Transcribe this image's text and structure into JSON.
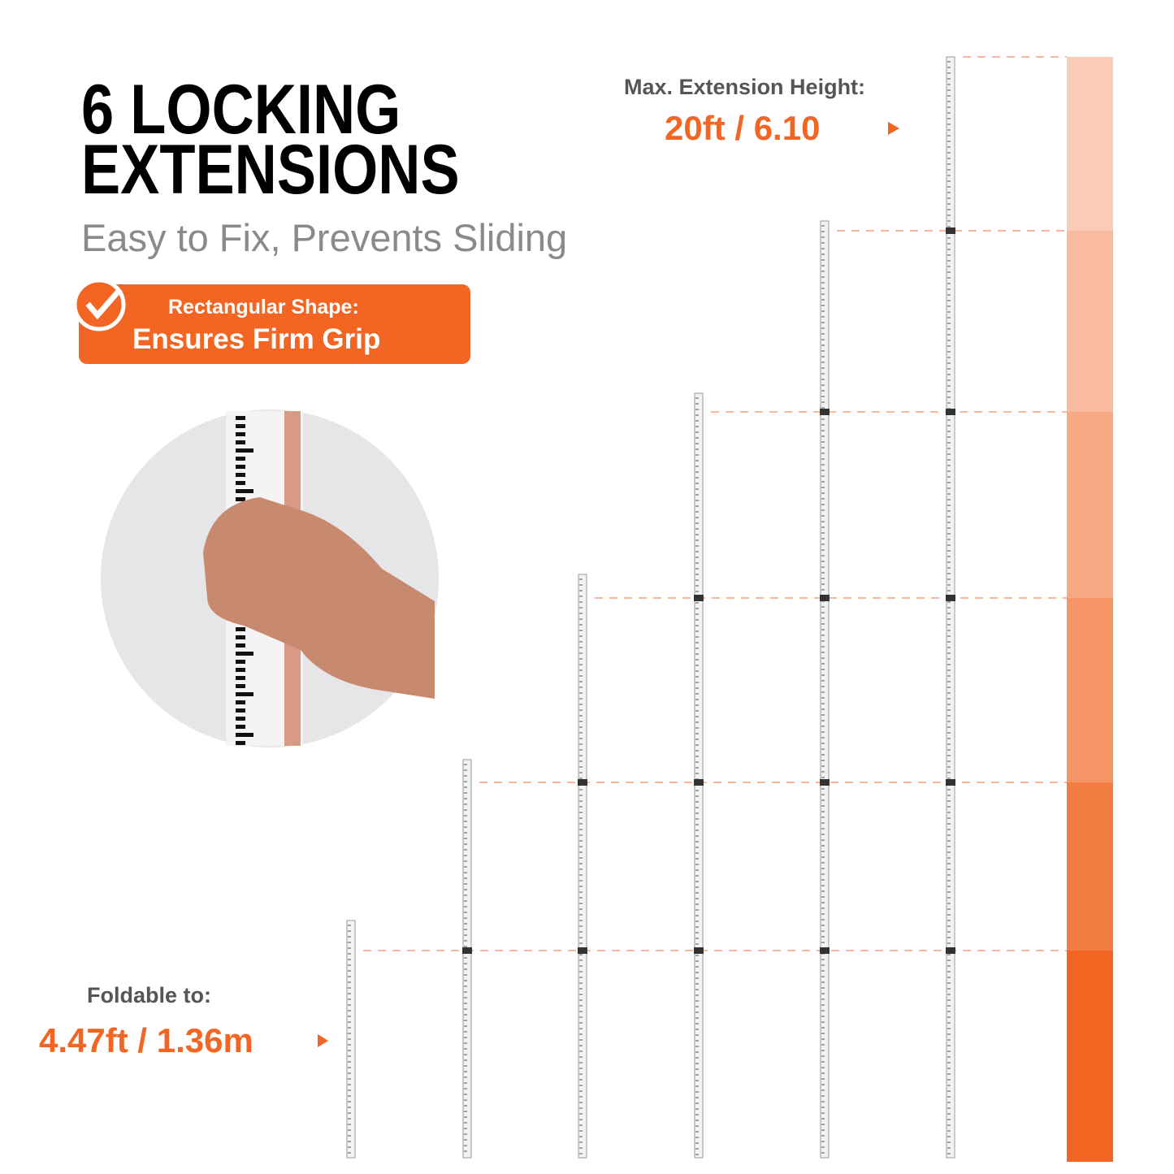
{
  "header": {
    "title_line_1": "6 LOCKING",
    "title_line_2": "EXTENSIONS",
    "subtitle": "Easy to Fix, Prevents Sliding"
  },
  "badge": {
    "label": "Rectangular Shape:",
    "text": "Ensures Firm Grip"
  },
  "max_height": {
    "label": "Max. Extension Height:",
    "value": "20ft / 6.10"
  },
  "folded": {
    "label": "Foldable to:",
    "value": "4.47ft / 1.36m"
  }
}
